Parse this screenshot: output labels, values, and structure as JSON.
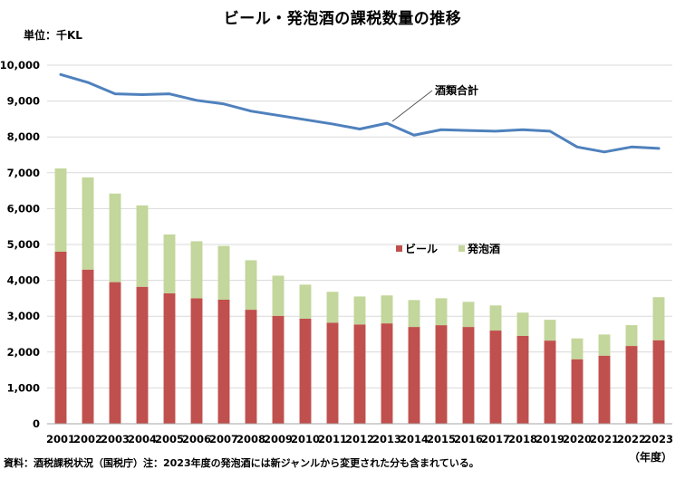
{
  "title": "ビール・発泡酒の課税数量の推移",
  "unit_label": "単位：千KL",
  "year_label": "（年度）",
  "source": "資料：酒税課税状況（国税庁）注：2023年度の発泡酒には新ジャンルから変更された分も含まれている。",
  "colors": {
    "beer": "#c0504d",
    "happoshu": "#c3d69b",
    "total": "#4f81bd",
    "grid": "#d9d9d9"
  },
  "chart_data": {
    "type": "bar",
    "stacked": true,
    "categories": [
      "2001",
      "2002",
      "2003",
      "2004",
      "2005",
      "2006",
      "2007",
      "2008",
      "2009",
      "2010",
      "2011",
      "2012",
      "2013",
      "2014",
      "2015",
      "2016",
      "2017",
      "2018",
      "2019",
      "2020",
      "2021",
      "2022",
      "2023"
    ],
    "series": [
      {
        "name": "ビール",
        "values": [
          4800,
          4300,
          3950,
          3820,
          3640,
          3500,
          3460,
          3180,
          3010,
          2930,
          2820,
          2770,
          2800,
          2700,
          2750,
          2700,
          2600,
          2450,
          2320,
          1800,
          1900,
          2170,
          2330
        ]
      },
      {
        "name": "発泡酒",
        "values": [
          2320,
          2570,
          2470,
          2270,
          1640,
          1590,
          1500,
          1380,
          1120,
          950,
          860,
          780,
          780,
          750,
          750,
          700,
          700,
          650,
          580,
          580,
          590,
          580,
          1200
        ]
      }
    ],
    "line_series": {
      "name": "酒類合計",
      "label": "酒類合計",
      "values": [
        9740,
        9520,
        9200,
        9180,
        9200,
        9020,
        8920,
        8720,
        8600,
        8480,
        8360,
        8220,
        8380,
        8050,
        8200,
        8180,
        8160,
        8200,
        8160,
        7720,
        7580,
        7720,
        7680
      ]
    },
    "ylim": [
      0,
      10000
    ],
    "yticks": [
      "0",
      "1,000",
      "2,000",
      "3,000",
      "4,000",
      "5,000",
      "6,000",
      "7,000",
      "8,000",
      "9,000",
      "10,000"
    ],
    "legend_position": "center-right",
    "grid": true
  }
}
